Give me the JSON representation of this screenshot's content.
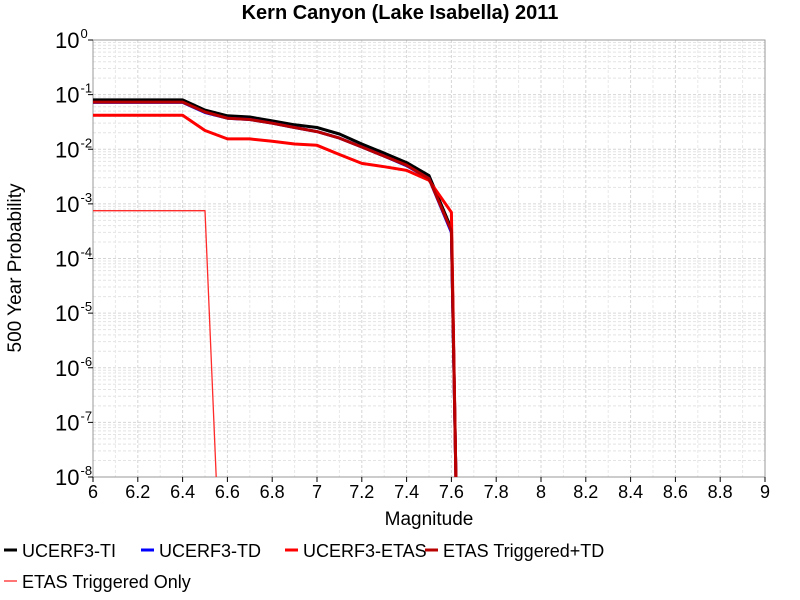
{
  "chart_data": {
    "type": "line",
    "title": "Kern Canyon (Lake Isabella) 2011",
    "xlabel": "Magnitude",
    "ylabel": "500 Year Probability",
    "xlim": [
      6,
      9
    ],
    "ylim": [
      1e-08,
      1
    ],
    "yscale": "log",
    "xticks": [
      "6",
      "6.2",
      "6.4",
      "6.6",
      "6.8",
      "7",
      "7.2",
      "7.4",
      "7.6",
      "7.8",
      "8",
      "8.2",
      "8.4",
      "8.6",
      "8.8",
      "9"
    ],
    "yticks": [
      {
        "base": "10",
        "exp": "0",
        "value": 1
      },
      {
        "base": "10",
        "exp": "-1",
        "value": 0.1
      },
      {
        "base": "10",
        "exp": "-2",
        "value": 0.01
      },
      {
        "base": "10",
        "exp": "-3",
        "value": 0.001
      },
      {
        "base": "10",
        "exp": "-4",
        "value": 0.0001
      },
      {
        "base": "10",
        "exp": "-5",
        "value": 1e-05
      },
      {
        "base": "10",
        "exp": "-6",
        "value": 1e-06
      },
      {
        "base": "10",
        "exp": "-7",
        "value": 1e-07
      },
      {
        "base": "10",
        "exp": "-8",
        "value": 1e-08
      }
    ],
    "grid": true,
    "legend_position": "bottom",
    "series": [
      {
        "name": "UCERF3-TI",
        "color": "#000000",
        "width": "thick",
        "x": [
          6.0,
          6.1,
          6.2,
          6.3,
          6.4,
          6.5,
          6.6,
          6.7,
          6.8,
          6.9,
          7.0,
          7.1,
          7.2,
          7.3,
          7.4,
          7.5,
          7.6,
          7.62
        ],
        "y": [
          0.08,
          0.08,
          0.08,
          0.08,
          0.08,
          0.052,
          0.041,
          0.039,
          0.033,
          0.028,
          0.025,
          0.019,
          0.0125,
          0.0085,
          0.0057,
          0.0033,
          0.00035,
          1e-08
        ]
      },
      {
        "name": "UCERF3-TD",
        "color": "#0000ff",
        "width": "thick",
        "x": [
          6.0,
          6.1,
          6.2,
          6.3,
          6.4,
          6.5,
          6.6,
          6.7,
          6.8,
          6.9,
          7.0,
          7.1,
          7.2,
          7.3,
          7.4,
          7.5,
          7.6,
          7.62
        ],
        "y": [
          0.072,
          0.072,
          0.072,
          0.072,
          0.072,
          0.047,
          0.037,
          0.035,
          0.03,
          0.025,
          0.021,
          0.016,
          0.011,
          0.0075,
          0.005,
          0.0029,
          0.0003,
          1e-08
        ]
      },
      {
        "name": "UCERF3-ETAS",
        "color": "#ff0000",
        "width": "thick",
        "x": [
          6.0,
          6.1,
          6.2,
          6.3,
          6.4,
          6.5,
          6.6,
          6.7,
          6.8,
          6.9,
          7.0,
          7.1,
          7.2,
          7.3,
          7.4,
          7.5,
          7.6,
          7.62
        ],
        "y": [
          0.042,
          0.042,
          0.042,
          0.042,
          0.042,
          0.022,
          0.0155,
          0.0155,
          0.014,
          0.0125,
          0.0118,
          0.008,
          0.0055,
          0.0048,
          0.0041,
          0.0027,
          0.0007,
          1e-08
        ]
      },
      {
        "name": "ETAS Triggered+TD",
        "color": "#b80000",
        "width": "thick",
        "x": [
          6.0,
          6.1,
          6.2,
          6.3,
          6.4,
          6.5,
          6.6,
          6.7,
          6.8,
          6.9,
          7.0,
          7.1,
          7.2,
          7.3,
          7.4,
          7.5,
          7.6,
          7.62
        ],
        "y": [
          0.073,
          0.073,
          0.073,
          0.073,
          0.073,
          0.048,
          0.037,
          0.035,
          0.03,
          0.025,
          0.021,
          0.016,
          0.011,
          0.0075,
          0.0051,
          0.0029,
          0.00032,
          1e-08
        ]
      },
      {
        "name": "ETAS Triggered Only",
        "color": "#ff2a2a",
        "width": "thin",
        "x": [
          6.0,
          6.5,
          6.55
        ],
        "y": [
          0.00075,
          0.00075,
          1e-08
        ]
      }
    ]
  }
}
